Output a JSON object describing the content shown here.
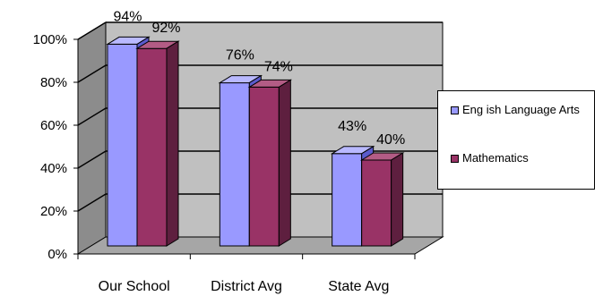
{
  "chart_data": {
    "type": "bar",
    "categories": [
      "Our School",
      "District Avg",
      "State Avg"
    ],
    "series": [
      {
        "name": "Eng ish Language Arts",
        "values": [
          94,
          76,
          43
        ],
        "labels": [
          "94%",
          "76%",
          "43%"
        ],
        "color": "#9999ff",
        "side_color": "#5b5bcc",
        "top_color": "#b9b9ff"
      },
      {
        "name": "Mathematics",
        "values": [
          92,
          74,
          40
        ],
        "labels": [
          "92%",
          "74%",
          "40%"
        ],
        "color": "#993366",
        "side_color": "#5e1f3f",
        "top_color": "#b35c85"
      }
    ],
    "y_ticks": [
      0,
      20,
      40,
      60,
      80,
      100
    ],
    "y_tick_labels": [
      "0%",
      "20%",
      "40%",
      "60%",
      "80%",
      "100%"
    ],
    "ylim": [
      0,
      100
    ],
    "grid": true,
    "legend_position": "right",
    "wall_color": "#c0c0c0",
    "floor_color": "#a6a6a6",
    "side_wall_color": "#8c8c8c"
  }
}
